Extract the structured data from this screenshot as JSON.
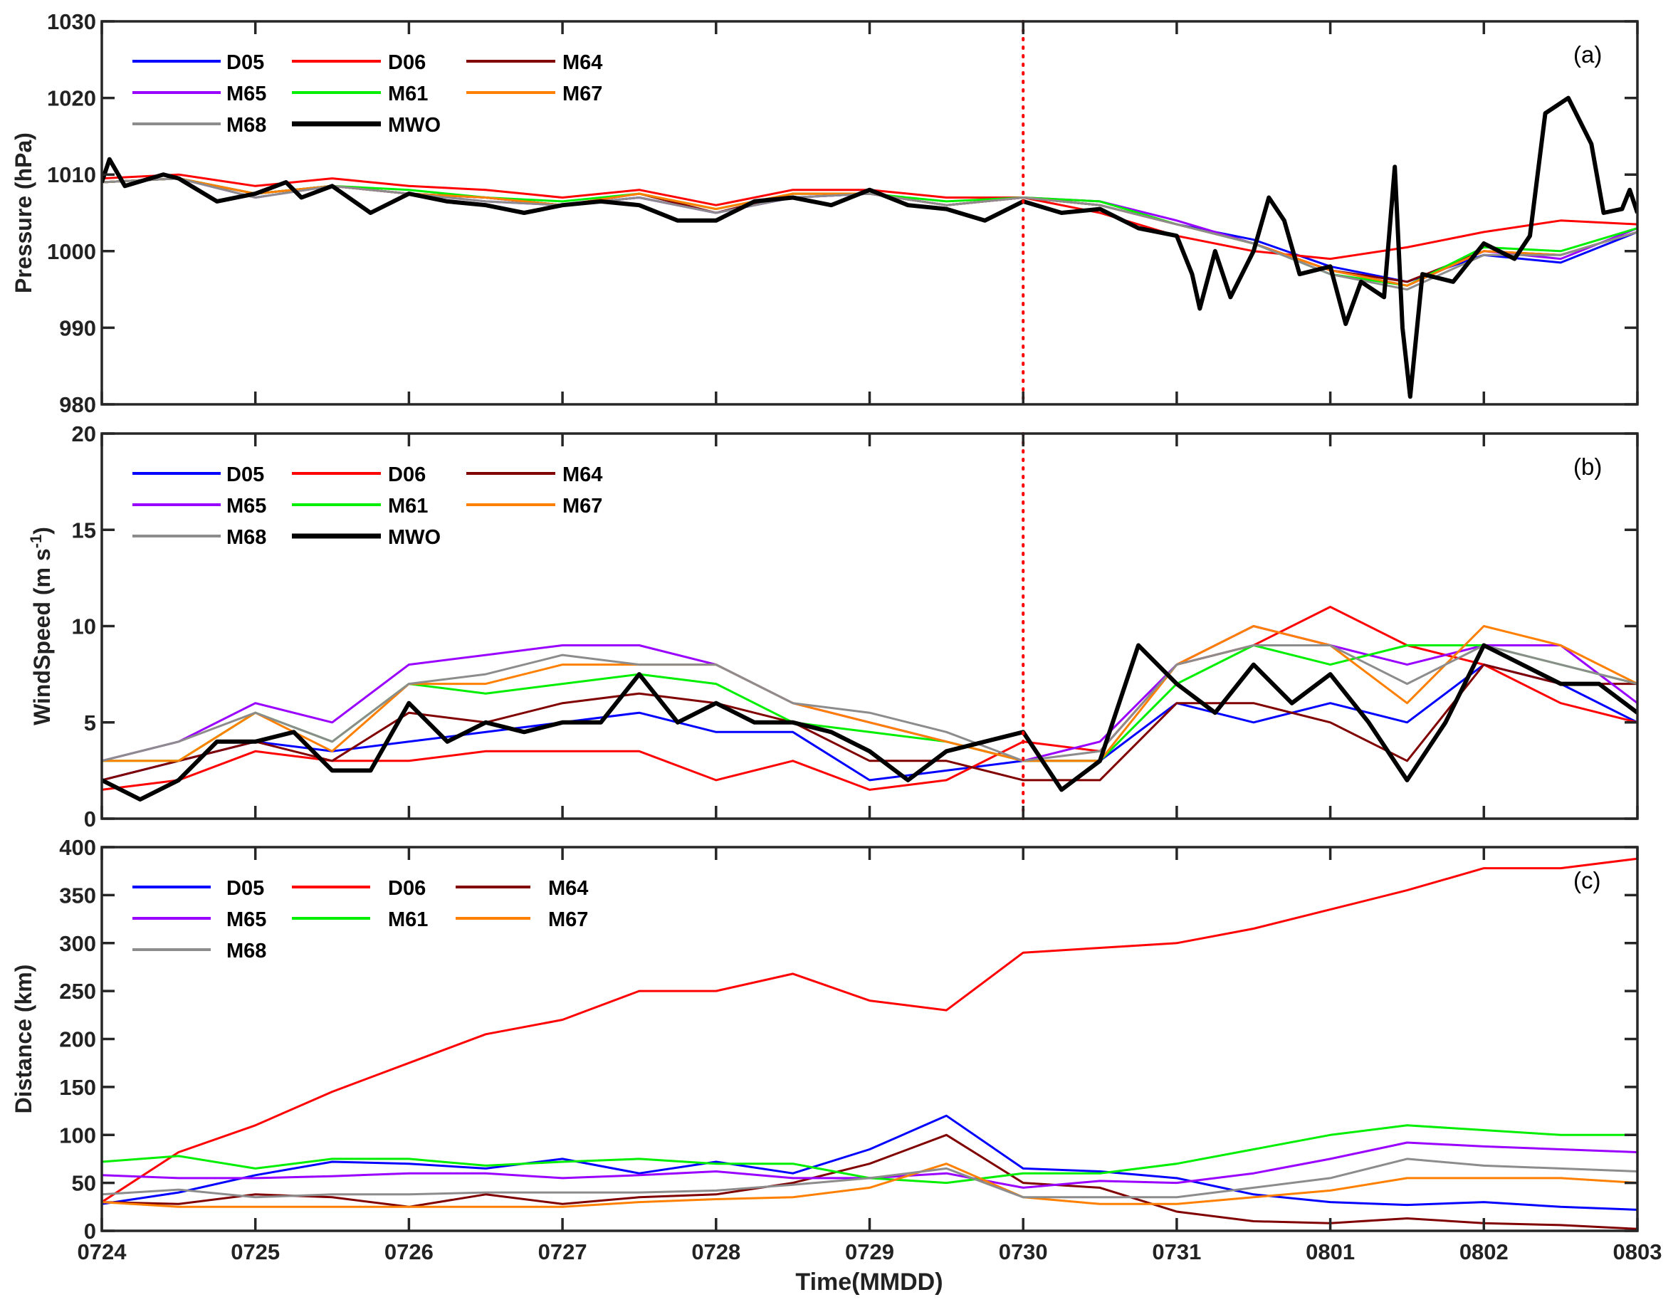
{
  "chart_data": {
    "type": "line",
    "xlabel": "Time(MMDD)",
    "x_ticks": [
      "0724",
      "0725",
      "0726",
      "0727",
      "0728",
      "0729",
      "0730",
      "0731",
      "0801",
      "0802",
      "0803"
    ],
    "x_range_days": [
      0,
      10
    ],
    "x_step_days": 0.5,
    "marker_day": 6,
    "marker_color": "#ff0000",
    "colors": {
      "D05": "#0000ff",
      "D06": "#ff0000",
      "M64": "#800000",
      "M65": "#9900ff",
      "M61": "#00ee00",
      "M67": "#ff8000",
      "M68": "#8c8c8c",
      "MWO": "#000000"
    },
    "panels": [
      {
        "id": "a",
        "label": "(a)",
        "ylabel": "Pressure (hPa)",
        "ylim": [
          980,
          1030
        ],
        "yticks": [
          980,
          990,
          1000,
          1010,
          1020,
          1030
        ],
        "legend": [
          "D05",
          "D06",
          "M64",
          "M65",
          "M61",
          "M67",
          "M68",
          "MWO"
        ],
        "series": [
          {
            "name": "D05",
            "values": [
              1009,
              1009.5,
              1007.5,
              1008.5,
              1007.5,
              1007,
              1006,
              1007,
              1005,
              1007,
              1007.5,
              1006,
              1007,
              1006,
              1003.5,
              1001.5,
              998,
              996,
              999.5,
              998.5,
              1002.5
            ]
          },
          {
            "name": "D06",
            "values": [
              1009.5,
              1010,
              1008.5,
              1009.5,
              1008.5,
              1008,
              1007,
              1008,
              1006,
              1008,
              1008,
              1007,
              1007,
              1005,
              1002,
              1000,
              999,
              1000.5,
              1002.5,
              1004,
              1003.5
            ]
          },
          {
            "name": "M64",
            "values": [
              1009,
              1009.5,
              1007.5,
              1008.5,
              1007.5,
              1007,
              1006,
              1007.5,
              1005,
              1007.5,
              1007.5,
              1006,
              1007,
              1006,
              1003.5,
              1001,
              997.5,
              996,
              1000,
              999.5,
              1002.5
            ]
          },
          {
            "name": "M65",
            "values": [
              1009,
              1009.5,
              1007,
              1008.5,
              1007.5,
              1006.5,
              1006,
              1007,
              1005,
              1007,
              1007.5,
              1006,
              1007,
              1006.5,
              1004,
              1001,
              997.5,
              995.5,
              1000,
              999,
              1003
            ]
          },
          {
            "name": "M61",
            "values": [
              1009,
              1009.5,
              1007.5,
              1008.5,
              1008,
              1007,
              1006.5,
              1007.5,
              1005.5,
              1007.5,
              1007.5,
              1006.5,
              1007,
              1006.5,
              1003.5,
              1001,
              997,
              995.5,
              1000.5,
              1000,
              1003
            ]
          },
          {
            "name": "M67",
            "values": [
              1009,
              1009.5,
              1007.5,
              1008.5,
              1007.5,
              1007,
              1006,
              1007.5,
              1005.5,
              1007.5,
              1007.5,
              1006,
              1007,
              1006,
              1003.5,
              1001,
              997.5,
              995.5,
              1000,
              999.5,
              1002.5
            ]
          },
          {
            "name": "M68",
            "values": [
              1009,
              1009.5,
              1007,
              1008.5,
              1007.5,
              1006.5,
              1006,
              1007,
              1005,
              1007,
              1007.5,
              1006,
              1007,
              1006,
              1003.5,
              1001,
              997,
              995,
              999.5,
              999.5,
              1002.5
            ]
          },
          {
            "name": "MWO",
            "xy": [
              [
                0,
                1009
              ],
              [
                0.05,
                1012
              ],
              [
                0.15,
                1008.5
              ],
              [
                0.4,
                1010
              ],
              [
                0.5,
                1009.5
              ],
              [
                0.75,
                1006.5
              ],
              [
                1,
                1007.5
              ],
              [
                1.2,
                1009
              ],
              [
                1.3,
                1007
              ],
              [
                1.5,
                1008.5
              ],
              [
                1.75,
                1005
              ],
              [
                2,
                1007.5
              ],
              [
                2.25,
                1006.5
              ],
              [
                2.5,
                1006
              ],
              [
                2.75,
                1005
              ],
              [
                3,
                1006
              ],
              [
                3.25,
                1006.5
              ],
              [
                3.5,
                1006
              ],
              [
                3.75,
                1004
              ],
              [
                4,
                1004
              ],
              [
                4.25,
                1006.5
              ],
              [
                4.5,
                1007
              ],
              [
                4.75,
                1006
              ],
              [
                5,
                1008
              ],
              [
                5.25,
                1006
              ],
              [
                5.5,
                1005.5
              ],
              [
                5.75,
                1004
              ],
              [
                6,
                1006.5
              ],
              [
                6.25,
                1005
              ],
              [
                6.5,
                1005.5
              ],
              [
                6.75,
                1003
              ],
              [
                7,
                1002
              ],
              [
                7.1,
                997
              ],
              [
                7.15,
                992.5
              ],
              [
                7.25,
                1000
              ],
              [
                7.35,
                994
              ],
              [
                7.5,
                1000
              ],
              [
                7.6,
                1007
              ],
              [
                7.7,
                1004
              ],
              [
                7.8,
                997
              ],
              [
                8,
                998
              ],
              [
                8.1,
                990.5
              ],
              [
                8.2,
                996
              ],
              [
                8.35,
                994
              ],
              [
                8.42,
                1011
              ],
              [
                8.47,
                990
              ],
              [
                8.52,
                981
              ],
              [
                8.6,
                997
              ],
              [
                8.8,
                996
              ],
              [
                9,
                1001
              ],
              [
                9.2,
                999
              ],
              [
                9.3,
                1002
              ],
              [
                9.4,
                1018
              ],
              [
                9.55,
                1020
              ],
              [
                9.7,
                1014
              ],
              [
                9.78,
                1005
              ],
              [
                9.9,
                1005.5
              ],
              [
                9.95,
                1008
              ],
              [
                10,
                1005
              ]
            ]
          }
        ]
      },
      {
        "id": "b",
        "label": "(b)",
        "ylabel": "WindSpeed (m s",
        "ylabel_sup": "-1",
        "ylabel_end": ")",
        "ylim": [
          0,
          20
        ],
        "yticks": [
          0,
          5,
          10,
          15,
          20
        ],
        "legend": [
          "D05",
          "D06",
          "M64",
          "M65",
          "M61",
          "M67",
          "M68",
          "MWO"
        ],
        "series": [
          {
            "name": "D05",
            "values": [
              2,
              3,
              4,
              3.5,
              4,
              4.5,
              5,
              5.5,
              4.5,
              4.5,
              2,
              2.5,
              3,
              3,
              6,
              5,
              6,
              5,
              8,
              7,
              5
            ]
          },
          {
            "name": "D06",
            "values": [
              1.5,
              2,
              3.5,
              3,
              3,
              3.5,
              3.5,
              3.5,
              2,
              3,
              1.5,
              2,
              4,
              3.5,
              8,
              9,
              11,
              9,
              8,
              6,
              5
            ]
          },
          {
            "name": "M64",
            "values": [
              2,
              3,
              4,
              3,
              5.5,
              5,
              6,
              6.5,
              6,
              5,
              3,
              3,
              2,
              2,
              6,
              6,
              5,
              3,
              8,
              7,
              7
            ]
          },
          {
            "name": "M65",
            "values": [
              3,
              4,
              6,
              5,
              8,
              8.5,
              9,
              9,
              8,
              6,
              5,
              4,
              3,
              4,
              8,
              10,
              9,
              8,
              9,
              9,
              6
            ]
          },
          {
            "name": "M61",
            "values": [
              3,
              3,
              5.5,
              4,
              7,
              6.5,
              7,
              7.5,
              7,
              5,
              4.5,
              4,
              3,
              3,
              7,
              9,
              8,
              9,
              9,
              8,
              7
            ]
          },
          {
            "name": "M67",
            "values": [
              3,
              3,
              5.5,
              3.5,
              7,
              7,
              8,
              8,
              8,
              6,
              5,
              4,
              3,
              3,
              8,
              10,
              9,
              6,
              10,
              9,
              7
            ]
          },
          {
            "name": "M68",
            "values": [
              3,
              4,
              5.5,
              4,
              7,
              7.5,
              8.5,
              8,
              8,
              6,
              5.5,
              4.5,
              3,
              3.5,
              8,
              9,
              9,
              7,
              9,
              8,
              7
            ]
          },
          {
            "name": "MWO",
            "xy": [
              [
                0,
                2
              ],
              [
                0.25,
                1
              ],
              [
                0.5,
                2
              ],
              [
                0.75,
                4
              ],
              [
                1,
                4
              ],
              [
                1.25,
                4.5
              ],
              [
                1.5,
                2.5
              ],
              [
                1.75,
                2.5
              ],
              [
                2,
                6
              ],
              [
                2.25,
                4
              ],
              [
                2.5,
                5
              ],
              [
                2.75,
                4.5
              ],
              [
                3,
                5
              ],
              [
                3.25,
                5
              ],
              [
                3.5,
                7.5
              ],
              [
                3.75,
                5
              ],
              [
                4,
                6
              ],
              [
                4.25,
                5
              ],
              [
                4.5,
                5
              ],
              [
                4.75,
                4.5
              ],
              [
                5,
                3.5
              ],
              [
                5.25,
                2
              ],
              [
                5.5,
                3.5
              ],
              [
                5.75,
                4
              ],
              [
                6,
                4.5
              ],
              [
                6.25,
                1.5
              ],
              [
                6.5,
                3
              ],
              [
                6.75,
                9
              ],
              [
                7,
                7
              ],
              [
                7.25,
                5.5
              ],
              [
                7.5,
                8
              ],
              [
                7.75,
                6
              ],
              [
                8,
                7.5
              ],
              [
                8.25,
                5
              ],
              [
                8.5,
                2
              ],
              [
                8.75,
                5
              ],
              [
                9,
                9
              ],
              [
                9.25,
                8
              ],
              [
                9.5,
                7
              ],
              [
                9.75,
                7
              ],
              [
                10,
                5.5
              ]
            ]
          }
        ]
      },
      {
        "id": "c",
        "label": "(c)",
        "ylabel": "Distance (km)",
        "ylim": [
          0,
          400
        ],
        "yticks": [
          0,
          50,
          100,
          150,
          200,
          250,
          300,
          350,
          400
        ],
        "legend": [
          "D05",
          "D06",
          "M64",
          "M65",
          "M61",
          "M67",
          "M68"
        ],
        "series": [
          {
            "name": "D05",
            "values": [
              28,
              40,
              58,
              72,
              70,
              65,
              75,
              60,
              72,
              60,
              85,
              120,
              65,
              62,
              55,
              38,
              30,
              27,
              30,
              25,
              22
            ]
          },
          {
            "name": "D06",
            "values": [
              30,
              82,
              110,
              145,
              175,
              205,
              220,
              250,
              250,
              268,
              240,
              230,
              290,
              295,
              300,
              315,
              335,
              355,
              378,
              378,
              388
            ]
          },
          {
            "name": "M64",
            "values": [
              30,
              28,
              38,
              35,
              25,
              38,
              28,
              35,
              38,
              50,
              70,
              100,
              50,
              45,
              20,
              10,
              8,
              13,
              8,
              6,
              2
            ]
          },
          {
            "name": "M65",
            "values": [
              58,
              55,
              55,
              57,
              60,
              60,
              55,
              58,
              62,
              55,
              55,
              60,
              45,
              52,
              50,
              60,
              75,
              92,
              88,
              85,
              82
            ]
          },
          {
            "name": "M61",
            "values": [
              72,
              78,
              65,
              75,
              75,
              68,
              72,
              75,
              70,
              70,
              55,
              50,
              60,
              60,
              70,
              85,
              100,
              110,
              105,
              100,
              100
            ]
          },
          {
            "name": "M67",
            "values": [
              30,
              25,
              25,
              25,
              25,
              25,
              25,
              30,
              33,
              35,
              45,
              70,
              35,
              28,
              28,
              35,
              42,
              55,
              55,
              55,
              50
            ]
          },
          {
            "name": "M68",
            "values": [
              38,
              43,
              35,
              38,
              38,
              40,
              40,
              40,
              42,
              48,
              55,
              65,
              35,
              35,
              35,
              45,
              55,
              75,
              68,
              65,
              62
            ]
          }
        ]
      }
    ]
  }
}
